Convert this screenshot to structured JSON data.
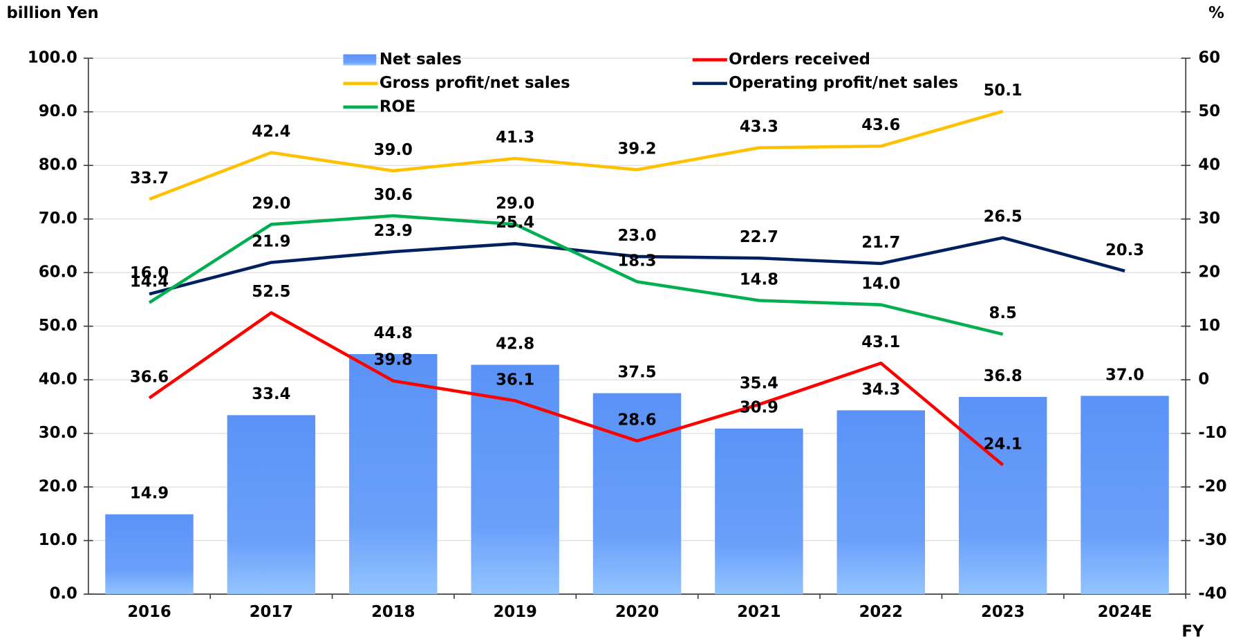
{
  "chart_data": {
    "type": "combo",
    "y_label": "billion Yen",
    "y2_label": "%",
    "x_label": "FY",
    "categories": [
      "2016",
      "2017",
      "2018",
      "2019",
      "2020",
      "2021",
      "2022",
      "2023",
      "2024E"
    ],
    "ylim": [
      0,
      100
    ],
    "yticks": [
      {
        "value": 0,
        "label": "0.0"
      },
      {
        "value": 10,
        "label": "10.0"
      },
      {
        "value": 20,
        "label": "20.0"
      },
      {
        "value": 30,
        "label": "30.0"
      },
      {
        "value": 40,
        "label": "40.0"
      },
      {
        "value": 50,
        "label": "50.0"
      },
      {
        "value": 60,
        "label": "60.0"
      },
      {
        "value": 70,
        "label": "70.0"
      },
      {
        "value": 80,
        "label": "80.0"
      },
      {
        "value": 90,
        "label": "90.0"
      },
      {
        "value": 100,
        "label": "100.0"
      }
    ],
    "y2lim": [
      -40,
      60
    ],
    "y2ticks": [
      -40,
      -30,
      -20,
      -10,
      0,
      10,
      20,
      30,
      40,
      50,
      60
    ],
    "negative_tick_color": "#ff0000",
    "grid": true,
    "series": [
      {
        "name": "Net sales",
        "type": "bar",
        "color": "#5b92f7",
        "values": [
          14.9,
          33.4,
          44.8,
          42.8,
          37.5,
          30.9,
          34.3,
          36.8,
          37.0
        ],
        "value_labels": [
          "14.9",
          "33.4",
          "44.8",
          "42.8",
          "37.5",
          "30.9",
          "34.3",
          "36.8",
          "37.0"
        ]
      },
      {
        "name": "Orders received",
        "type": "line",
        "color": "#ff0000",
        "values": [
          36.6,
          52.5,
          39.8,
          36.1,
          28.6,
          35.4,
          43.1,
          24.1,
          null
        ],
        "value_labels": [
          "36.6",
          "52.5",
          "39.8",
          "36.1",
          "28.6",
          "35.4",
          "43.1",
          "24.1",
          null
        ]
      },
      {
        "name": "Gross profit/net sales",
        "type": "line",
        "axis": "y2",
        "color": "#ffc000",
        "values": [
          33.7,
          42.4,
          39.0,
          41.3,
          39.2,
          43.3,
          43.6,
          50.1,
          null
        ],
        "value_labels": [
          "33.7",
          "42.4",
          "39.0",
          "41.3",
          "39.2",
          "43.3",
          "43.6",
          "50.1",
          null
        ]
      },
      {
        "name": "Operating profit/net sales",
        "type": "line",
        "axis": "y2",
        "color": "#002060",
        "values": [
          16.0,
          21.9,
          23.9,
          25.4,
          23.0,
          22.7,
          21.7,
          26.5,
          20.3
        ],
        "value_labels": [
          "16.0",
          "21.9",
          "23.9",
          "25.4",
          "23.0",
          "22.7",
          "21.7",
          "26.5",
          "20.3"
        ]
      },
      {
        "name": "ROE",
        "type": "line",
        "axis": "y2",
        "color": "#00b050",
        "values": [
          14.4,
          29.0,
          30.6,
          29.0,
          18.3,
          14.8,
          14.0,
          8.5,
          null
        ],
        "value_labels": [
          "14.4",
          "29.0",
          "30.6",
          "29.0",
          "18.3",
          "14.8",
          "14.0",
          "8.5",
          null
        ]
      }
    ]
  }
}
